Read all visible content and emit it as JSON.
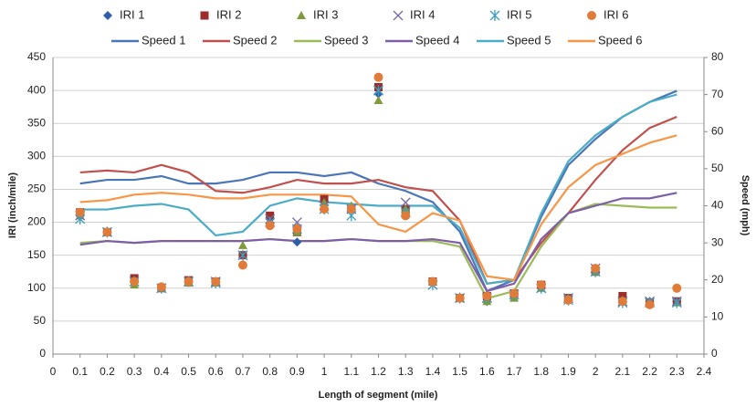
{
  "chart_data": {
    "type": "combo",
    "xlabel": "Length of segment (mile)",
    "ylabel": "IRI (inch/mile)",
    "y2label": "Speed (mph)",
    "x": [
      0.1,
      0.2,
      0.3,
      0.4,
      0.5,
      0.6,
      0.7,
      0.8,
      0.9,
      1,
      1.1,
      1.2,
      1.3,
      1.4,
      1.5,
      1.6,
      1.7,
      1.8,
      1.9,
      2,
      2.1,
      2.2,
      2.3
    ],
    "xlim": [
      0,
      2.4
    ],
    "xticks": [
      0,
      0.1,
      0.2,
      0.3,
      0.4,
      0.5,
      0.6,
      0.7,
      0.8,
      0.9,
      1,
      1.1,
      1.2,
      1.3,
      1.4,
      1.5,
      1.6,
      1.7,
      1.8,
      1.9,
      2,
      2.1,
      2.2,
      2.3,
      2.4
    ],
    "ylim": [
      0,
      450
    ],
    "yticks": [
      0,
      50,
      100,
      150,
      200,
      250,
      300,
      350,
      400,
      450
    ],
    "y2lim": [
      0,
      80
    ],
    "y2ticks": [
      0,
      10,
      20,
      30,
      40,
      50,
      60,
      70,
      80
    ],
    "grid": true,
    "series": [
      {
        "name": "IRI 1",
        "type": "scatter",
        "marker": "diamond",
        "color": "#2e5fa8",
        "values": [
          210,
          185,
          110,
          100,
          110,
          110,
          150,
          205,
          170,
          230,
          220,
          395,
          215,
          110,
          85,
          80,
          90,
          100,
          85,
          125,
          85,
          80,
          80
        ]
      },
      {
        "name": "IRI 2",
        "type": "scatter",
        "marker": "square",
        "color": "#9b2d2a",
        "values": [
          215,
          185,
          115,
          100,
          112,
          110,
          150,
          210,
          185,
          235,
          220,
          405,
          220,
          110,
          85,
          88,
          92,
          105,
          85,
          125,
          88,
          78,
          80
        ]
      },
      {
        "name": "IRI 3",
        "type": "scatter",
        "marker": "triangle",
        "color": "#7e9a3a",
        "values": [
          210,
          185,
          105,
          100,
          108,
          108,
          165,
          200,
          185,
          230,
          225,
          385,
          220,
          110,
          85,
          80,
          85,
          100,
          85,
          125,
          82,
          80,
          78
        ]
      },
      {
        "name": "IRI 4",
        "type": "scatter",
        "marker": "x",
        "color": "#7a67a6",
        "values": [
          210,
          185,
          110,
          100,
          110,
          110,
          150,
          205,
          200,
          225,
          220,
          400,
          230,
          105,
          85,
          85,
          90,
          100,
          85,
          130,
          80,
          80,
          80
        ]
      },
      {
        "name": "IRI 5",
        "type": "scatter",
        "marker": "star",
        "color": "#3a9ebf",
        "values": [
          205,
          185,
          110,
          100,
          110,
          108,
          150,
          200,
          190,
          220,
          210,
          400,
          215,
          105,
          85,
          85,
          90,
          100,
          82,
          125,
          78,
          78,
          78
        ]
      },
      {
        "name": "IRI 6",
        "type": "scatter",
        "marker": "circle",
        "color": "#e07b39",
        "values": [
          215,
          185,
          110,
          102,
          110,
          110,
          135,
          195,
          190,
          220,
          220,
          420,
          210,
          110,
          85,
          88,
          92,
          105,
          82,
          130,
          80,
          75,
          100
        ]
      },
      {
        "name": "Speed 1",
        "type": "line",
        "axis": "y2",
        "color": "#4a76b8",
        "values": [
          46,
          47,
          47,
          48,
          46,
          46,
          47,
          49,
          49,
          48,
          49,
          46,
          44,
          41,
          33,
          17,
          20,
          37,
          51,
          58,
          64,
          68,
          71
        ]
      },
      {
        "name": "Speed 2",
        "type": "line",
        "axis": "y2",
        "color": "#c0504d",
        "values": [
          49,
          49.5,
          49,
          51,
          49,
          44,
          43.5,
          45,
          47,
          46,
          46,
          47,
          45,
          44,
          36,
          19,
          20,
          30,
          38,
          47,
          55,
          61,
          64
        ]
      },
      {
        "name": "Speed 3",
        "type": "line",
        "axis": "y2",
        "color": "#9bbb59",
        "values": [
          30,
          30.5,
          30,
          30.5,
          30.5,
          30.5,
          30.5,
          31,
          30.5,
          30.5,
          31,
          30.5,
          30.5,
          30.5,
          29,
          15,
          17,
          29,
          38,
          40.5,
          40,
          39.5,
          39.5
        ]
      },
      {
        "name": "Speed 4",
        "type": "line",
        "axis": "y2",
        "color": "#7f5ea8",
        "values": [
          29.5,
          30.5,
          30,
          30.5,
          30.5,
          30.5,
          30.5,
          31,
          30.5,
          30.5,
          31,
          30.5,
          30.5,
          31,
          30,
          17,
          19,
          31,
          38,
          40,
          42,
          42,
          43.5
        ]
      },
      {
        "name": "Speed 5",
        "type": "line",
        "axis": "y2",
        "color": "#4bacc6",
        "values": [
          39,
          39,
          40,
          40.5,
          39,
          32,
          33,
          40,
          42,
          41,
          40.5,
          40,
          40,
          40,
          34,
          19,
          20,
          38,
          52,
          59,
          64,
          68,
          70
        ]
      },
      {
        "name": "Speed 6",
        "type": "line",
        "axis": "y2",
        "color": "#f79646",
        "values": [
          41,
          41.5,
          43,
          43.5,
          43,
          42,
          42,
          43,
          43,
          43,
          42.5,
          35,
          33,
          38,
          36,
          21,
          20,
          35,
          45,
          51,
          54,
          57,
          59
        ]
      }
    ]
  }
}
